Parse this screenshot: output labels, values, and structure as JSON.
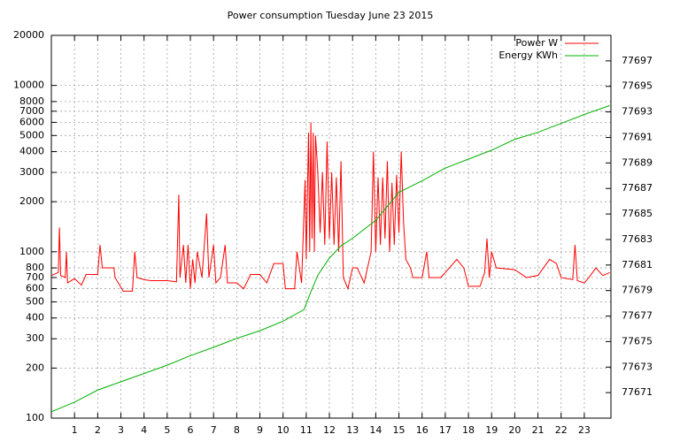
{
  "chart_data": {
    "type": "line",
    "title": "Power consumption Tuesday June 23 2015",
    "xlim": [
      0,
      24.15
    ],
    "xticks": [
      1,
      2,
      3,
      4,
      5,
      6,
      7,
      8,
      9,
      10,
      11,
      12,
      13,
      14,
      15,
      16,
      17,
      18,
      19,
      20,
      21,
      22,
      23
    ],
    "ylim": [
      100,
      20000
    ],
    "log_y": true,
    "yticks": [
      100,
      200,
      300,
      400,
      500,
      600,
      700,
      800,
      1000,
      2000,
      3000,
      4000,
      5000,
      6000,
      7000,
      8000,
      10000,
      20000
    ],
    "y2lim": [
      77669,
      77699
    ],
    "y2ticks": [
      77671,
      77673,
      77675,
      77677,
      77679,
      77681,
      77683,
      77685,
      77687,
      77689,
      77691,
      77693,
      77695,
      77697
    ],
    "grid": true,
    "legend": "top-right",
    "series": [
      {
        "name": "Power W",
        "color": "#ff0000",
        "x": [
          0,
          0.3,
          0.35,
          0.4,
          0.6,
          0.65,
          0.7,
          1.0,
          1.3,
          1.5,
          2.0,
          2.1,
          2.2,
          2.7,
          2.75,
          3.1,
          3.5,
          3.6,
          3.7,
          4.0,
          4.3,
          5.0,
          5.4,
          5.5,
          5.55,
          5.7,
          5.8,
          5.9,
          6.0,
          6.1,
          6.2,
          6.3,
          6.5,
          6.7,
          6.8,
          7.0,
          7.1,
          7.3,
          7.5,
          7.6,
          8.0,
          8.3,
          8.6,
          9.0,
          9.3,
          9.6,
          10.0,
          10.1,
          10.5,
          10.6,
          10.8,
          10.95,
          11.0,
          11.1,
          11.15,
          11.2,
          11.25,
          11.3,
          11.35,
          11.4,
          11.5,
          11.6,
          11.7,
          11.8,
          11.9,
          12.0,
          12.1,
          12.2,
          12.3,
          12.4,
          12.5,
          12.6,
          12.8,
          13.0,
          13.2,
          13.5,
          13.8,
          13.9,
          14.0,
          14.1,
          14.2,
          14.3,
          14.4,
          14.5,
          14.6,
          14.7,
          14.8,
          14.9,
          15.0,
          15.1,
          15.2,
          15.3,
          15.5,
          15.6,
          16.0,
          16.2,
          16.3,
          16.8,
          17.0,
          17.5,
          17.8,
          18.0,
          18.5,
          18.7,
          18.8,
          18.9,
          19.0,
          19.2,
          20.0,
          20.5,
          21.0,
          21.5,
          21.8,
          22.0,
          22.5,
          22.6,
          22.7,
          23.0,
          23.2,
          23.5,
          23.8,
          24.1
        ],
        "values": [
          720,
          750,
          1400,
          720,
          700,
          1000,
          650,
          690,
          630,
          730,
          730,
          1100,
          800,
          800,
          700,
          580,
          580,
          1000,
          700,
          680,
          670,
          670,
          660,
          2200,
          700,
          1100,
          650,
          1100,
          600,
          900,
          650,
          1000,
          700,
          1700,
          700,
          1100,
          650,
          700,
          1100,
          650,
          650,
          600,
          730,
          730,
          650,
          850,
          850,
          600,
          600,
          1000,
          650,
          2700,
          900,
          5200,
          1000,
          6000,
          1200,
          5200,
          1000,
          5000,
          3000,
          1300,
          3000,
          1100,
          4600,
          1200,
          3000,
          1100,
          2800,
          1000,
          3500,
          700,
          600,
          800,
          800,
          650,
          1000,
          4000,
          1000,
          2800,
          1100,
          2800,
          1200,
          3500,
          1000,
          2600,
          1100,
          2900,
          1300,
          4000,
          1500,
          900,
          800,
          700,
          700,
          1000,
          700,
          700,
          750,
          900,
          800,
          620,
          620,
          750,
          1200,
          700,
          1000,
          800,
          780,
          700,
          720,
          900,
          850,
          700,
          680,
          1100,
          670,
          650,
          700,
          800,
          720,
          750
        ]
      },
      {
        "name": "Energy KWh",
        "color": "#00b000",
        "axis": "y2",
        "x": [
          0,
          1,
          2,
          3,
          4,
          5,
          6,
          7,
          8,
          9,
          10,
          10.9,
          11.2,
          11.5,
          12,
          12.5,
          13,
          14,
          15,
          16,
          17,
          18,
          19,
          20,
          21,
          22,
          23,
          24.1
        ],
        "values": [
          77669.5,
          77670.25,
          77671.2,
          77671.85,
          77672.5,
          77673.15,
          77673.9,
          77674.55,
          77675.25,
          77675.85,
          77676.6,
          77677.5,
          77678.9,
          77680.2,
          77681.55,
          77682.5,
          77683.1,
          77684.5,
          77686.7,
          77687.6,
          77688.6,
          77689.3,
          77690.0,
          77690.85,
          77691.4,
          77692.1,
          77692.8,
          77693.5
        ]
      }
    ]
  }
}
